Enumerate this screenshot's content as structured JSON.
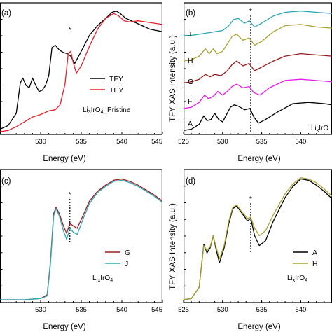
{
  "colors": {
    "black": "#000000",
    "red": "#e8202a",
    "cyan": "#2aa8b8",
    "olive": "#a9a12e",
    "brown": "#9b1b1b",
    "magenta": "#e61ee6"
  },
  "chart_data": [
    {
      "panel": "(a)",
      "type": "line",
      "xlabel": "Energy (eV)",
      "ylabel": "",
      "xlim": [
        525,
        545
      ],
      "xticks": [
        "530",
        "535",
        "540",
        "545"
      ],
      "annotation": {
        "main": "Li",
        "sub1": "3",
        "mid": "IrO",
        "sub2": "4",
        "tail": "_Pristine"
      },
      "star_x": 533.6,
      "legend_position": "center-right",
      "series": [
        {
          "name": "TFY",
          "color": "#000000",
          "x": [
            525,
            526,
            527,
            527.5,
            527.8,
            528.2,
            528.6,
            529,
            529.4,
            529.8,
            530.2,
            530.6,
            531,
            531.4,
            531.8,
            532.3,
            532.8,
            533.3,
            533.7,
            534.2,
            535,
            536,
            537,
            538,
            538.8,
            539.3,
            539.8,
            540.5,
            541.5,
            542.5,
            543.5,
            545
          ],
          "y": [
            0.02,
            0.05,
            0.15,
            0.4,
            0.44,
            0.38,
            0.36,
            0.44,
            0.38,
            0.33,
            0.34,
            0.38,
            0.46,
            0.69,
            0.71,
            0.67,
            0.65,
            0.64,
            0.62,
            0.56,
            0.66,
            0.79,
            0.87,
            0.93,
            0.98,
            0.99,
            0.97,
            0.93,
            0.9,
            0.87,
            0.84,
            0.82
          ]
        },
        {
          "name": "TEY",
          "color": "#e8202a",
          "x": [
            525,
            526,
            527,
            528,
            529,
            530,
            531,
            531.8,
            532.4,
            533,
            533.4,
            533.7,
            534,
            534.4,
            535,
            536,
            537,
            538,
            539,
            539.6,
            540.3,
            541,
            542,
            543,
            545
          ],
          "y": [
            0.0,
            0.01,
            0.04,
            0.08,
            0.12,
            0.14,
            0.17,
            0.18,
            0.22,
            0.39,
            0.64,
            0.66,
            0.57,
            0.48,
            0.54,
            0.7,
            0.84,
            0.93,
            0.97,
            0.95,
            0.91,
            0.9,
            0.91,
            0.9,
            0.88
          ]
        }
      ]
    },
    {
      "panel": "(b)",
      "type": "line",
      "xlabel": "Energy (eV)",
      "ylabel": "TFY XAS Intensity (a.u.)",
      "xlim": [
        525,
        544
      ],
      "xticks": [
        "525",
        "530",
        "535",
        "540"
      ],
      "annotation": {
        "main": "Li",
        "sub1": "x",
        "mid": "IrO",
        "sub2": "",
        "tail": ""
      },
      "star_x": 533.6,
      "series": [
        {
          "name": "A",
          "color": "#000000",
          "x": [
            525,
            526,
            527,
            527.6,
            528,
            528.5,
            529,
            529.5,
            530,
            530.5,
            531,
            531.5,
            532,
            532.8,
            533.5,
            534,
            534.6,
            535.5,
            537,
            539,
            541,
            543,
            544
          ],
          "y": [
            0.01,
            0.02,
            0.06,
            0.13,
            0.09,
            0.1,
            0.15,
            0.1,
            0.08,
            0.14,
            0.2,
            0.22,
            0.21,
            0.18,
            0.19,
            0.12,
            0.07,
            0.1,
            0.16,
            0.23,
            0.24,
            0.23,
            0.22
          ]
        },
        {
          "name": "F",
          "color": "#e61ee6",
          "x": [
            525,
            526,
            527,
            527.7,
            528.2,
            528.8,
            529.4,
            530,
            530.6,
            531.2,
            531.8,
            532.6,
            533.4,
            534,
            534.8,
            536,
            538,
            540,
            542,
            544
          ],
          "y": [
            0.19,
            0.2,
            0.24,
            0.3,
            0.27,
            0.29,
            0.33,
            0.3,
            0.33,
            0.37,
            0.39,
            0.36,
            0.37,
            0.32,
            0.3,
            0.36,
            0.42,
            0.43,
            0.42,
            0.41
          ]
        },
        {
          "name": "G",
          "color": "#9b1b1b",
          "x": [
            525,
            526,
            527,
            527.8,
            528.4,
            529,
            529.8,
            530.6,
            531.2,
            531.8,
            532.6,
            533.4,
            534.1,
            535,
            536.5,
            538,
            540,
            542,
            544
          ],
          "y": [
            0.4,
            0.41,
            0.43,
            0.47,
            0.45,
            0.47,
            0.46,
            0.5,
            0.55,
            0.58,
            0.54,
            0.56,
            0.5,
            0.53,
            0.58,
            0.62,
            0.64,
            0.63,
            0.62
          ]
        },
        {
          "name": "H",
          "color": "#a9a12e",
          "x": [
            525,
            526,
            527,
            527.8,
            528.3,
            528.8,
            529.3,
            530,
            530.6,
            531.2,
            531.8,
            532.6,
            533.4,
            534.1,
            535,
            536.5,
            538,
            540,
            542,
            544
          ],
          "y": [
            0.58,
            0.59,
            0.62,
            0.68,
            0.64,
            0.68,
            0.64,
            0.66,
            0.72,
            0.78,
            0.8,
            0.75,
            0.77,
            0.71,
            0.74,
            0.82,
            0.87,
            0.88,
            0.86,
            0.85
          ]
        },
        {
          "name": "J",
          "color": "#2aa8b8",
          "x": [
            525,
            526,
            527,
            528,
            529,
            530,
            530.8,
            531.4,
            532,
            532.8,
            533.4,
            534.1,
            535,
            536.5,
            538,
            540,
            542,
            544
          ],
          "y": [
            0.79,
            0.79,
            0.8,
            0.81,
            0.82,
            0.83,
            0.87,
            0.92,
            0.93,
            0.89,
            0.91,
            0.86,
            0.89,
            0.95,
            0.98,
            0.99,
            0.98,
            0.97
          ]
        }
      ],
      "curve_labels": [
        "J",
        "H",
        "G",
        "F",
        "A"
      ]
    },
    {
      "panel": "(c)",
      "type": "line",
      "xlabel": "Energy (eV)",
      "ylabel": "",
      "xlim": [
        525,
        545
      ],
      "xticks": [
        "530",
        "535",
        "540",
        "545"
      ],
      "annotation": {
        "main": "Li",
        "sub1": "x",
        "mid": "IrO",
        "sub2": "4",
        "tail": ""
      },
      "star_x": 533.6,
      "legend_position": "center-right",
      "series": [
        {
          "name": "G",
          "color": "#9b1b1b",
          "x": [
            525,
            528,
            530,
            530.8,
            531.2,
            531.6,
            531.9,
            532.3,
            532.8,
            533.2,
            533.6,
            534,
            534.5,
            535.2,
            536,
            537,
            538,
            539,
            540,
            541,
            542,
            543,
            544,
            545
          ],
          "y": [
            0.0,
            0.0,
            0.01,
            0.04,
            0.3,
            0.7,
            0.75,
            0.7,
            0.6,
            0.54,
            0.62,
            0.6,
            0.58,
            0.68,
            0.8,
            0.88,
            0.93,
            0.97,
            0.98,
            0.96,
            0.93,
            0.89,
            0.85,
            0.8
          ]
        },
        {
          "name": "J",
          "color": "#2aa8b8",
          "x": [
            525,
            528,
            530,
            530.8,
            531.2,
            531.6,
            531.9,
            532.3,
            532.8,
            533.2,
            533.6,
            534,
            534.5,
            535.2,
            536,
            537,
            538,
            539,
            540,
            541,
            542,
            543,
            544,
            545
          ],
          "y": [
            0.0,
            0.0,
            0.01,
            0.03,
            0.28,
            0.68,
            0.74,
            0.68,
            0.56,
            0.49,
            0.58,
            0.55,
            0.53,
            0.65,
            0.78,
            0.87,
            0.92,
            0.96,
            0.97,
            0.95,
            0.92,
            0.88,
            0.84,
            0.79
          ]
        }
      ]
    },
    {
      "panel": "(d)",
      "type": "line",
      "xlabel": "Energy (eV)",
      "ylabel": "TFY XAS Intensity (a.u.)",
      "xlim": [
        525,
        544
      ],
      "xticks": [
        "525",
        "530",
        "535",
        "540"
      ],
      "annotation": {
        "main": "Li",
        "sub1": "x",
        "mid": "IrO",
        "sub2": "4",
        "tail": ""
      },
      "star_x": 533.6,
      "legend_position": "center-right",
      "series": [
        {
          "name": "A",
          "color": "#000000",
          "x": [
            525,
            526,
            527,
            527.6,
            528,
            528.4,
            528.8,
            529.2,
            529.6,
            530.2,
            530.8,
            531.3,
            531.8,
            532.5,
            533.2,
            533.6,
            534.1,
            534.7,
            535.5,
            536.5,
            538,
            539,
            540,
            541,
            542,
            543,
            544
          ],
          "y": [
            0.0,
            0.01,
            0.1,
            0.45,
            0.38,
            0.42,
            0.52,
            0.4,
            0.3,
            0.42,
            0.62,
            0.74,
            0.76,
            0.7,
            0.64,
            0.66,
            0.52,
            0.44,
            0.48,
            0.64,
            0.83,
            0.92,
            0.98,
            0.97,
            0.93,
            0.88,
            0.82
          ]
        },
        {
          "name": "H",
          "color": "#a9a12e",
          "x": [
            525,
            526,
            527,
            527.6,
            528,
            528.4,
            528.8,
            529.2,
            529.6,
            530.2,
            530.8,
            531.3,
            531.8,
            532.5,
            533.2,
            533.6,
            534.1,
            534.7,
            535.5,
            536.5,
            538,
            539,
            540,
            541,
            542,
            543,
            544
          ],
          "y": [
            0.0,
            0.01,
            0.1,
            0.44,
            0.4,
            0.43,
            0.52,
            0.42,
            0.33,
            0.44,
            0.64,
            0.75,
            0.77,
            0.71,
            0.66,
            0.67,
            0.58,
            0.52,
            0.56,
            0.69,
            0.86,
            0.94,
            0.99,
            0.98,
            0.95,
            0.9,
            0.84
          ]
        }
      ]
    }
  ],
  "labels": {
    "a": {
      "panel": "(a)",
      "xlabel": "Energy (eV)",
      "legend": [
        "TFY",
        "TEY"
      ]
    },
    "b": {
      "panel": "(b)",
      "xlabel": "Energy (eV)",
      "ylabel": "TFY XAS Intensity (a.u.)"
    },
    "c": {
      "panel": "(c)",
      "xlabel": "Energy (eV)",
      "legend": [
        "G",
        "J"
      ]
    },
    "d": {
      "panel": "(d)",
      "xlabel": "Energy (eV)",
      "ylabel": "TFY XAS Intensity (a.u.)",
      "legend": [
        "A",
        "H"
      ]
    }
  },
  "star": "*"
}
